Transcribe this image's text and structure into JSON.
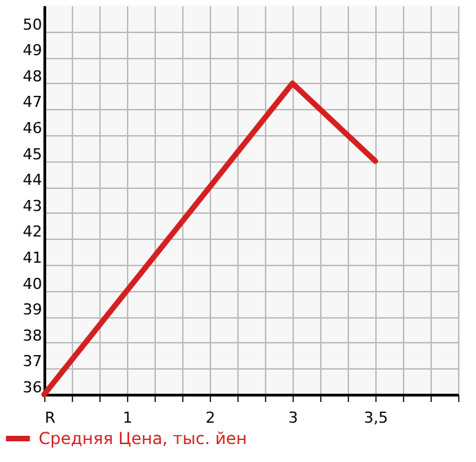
{
  "chart_data": {
    "type": "line",
    "categories": [
      "R",
      "1",
      "2",
      "3",
      "3,5"
    ],
    "series": [
      {
        "name": "Средняя Цена, тыс. йен",
        "color": "#d42020",
        "values": [
          36,
          40,
          44,
          48,
          45
        ]
      }
    ],
    "ylim": [
      36,
      51
    ],
    "yticks": [
      36,
      37,
      38,
      39,
      40,
      41,
      42,
      43,
      44,
      45,
      46,
      47,
      48,
      49,
      50
    ],
    "grid": true,
    "legend": "bottom left",
    "marker": "none",
    "line_style": "solid"
  }
}
